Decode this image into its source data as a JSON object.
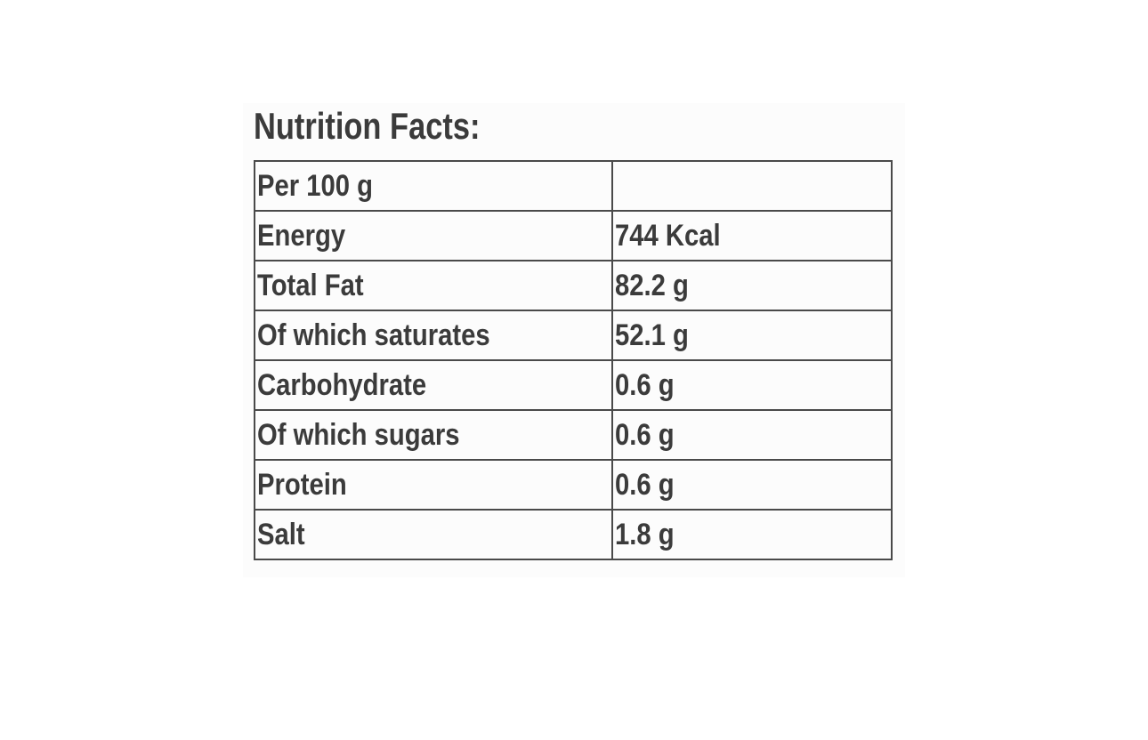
{
  "title": {
    "text": "Nutrition Facts:"
  },
  "table": {
    "rows": [
      {
        "label": "Per 100 g",
        "value": ""
      },
      {
        "label": "Energy",
        "value": "744 Kcal"
      },
      {
        "label": "Total Fat",
        "value": "82.2 g"
      },
      {
        "label": "Of which saturates",
        "value": "52.1 g"
      },
      {
        "label": "Carbohydrate",
        "value": "0.6 g"
      },
      {
        "label": "Of which sugars",
        "value": "0.6 g"
      },
      {
        "label": "Protein",
        "value": "0.6 g"
      },
      {
        "label": "Salt",
        "value": "1.8 g"
      }
    ]
  },
  "colors": {
    "page_background": "#ffffff",
    "panel_background": "#fcfcfc",
    "text": "#3b3b3b",
    "border": "#4a4a4a"
  }
}
